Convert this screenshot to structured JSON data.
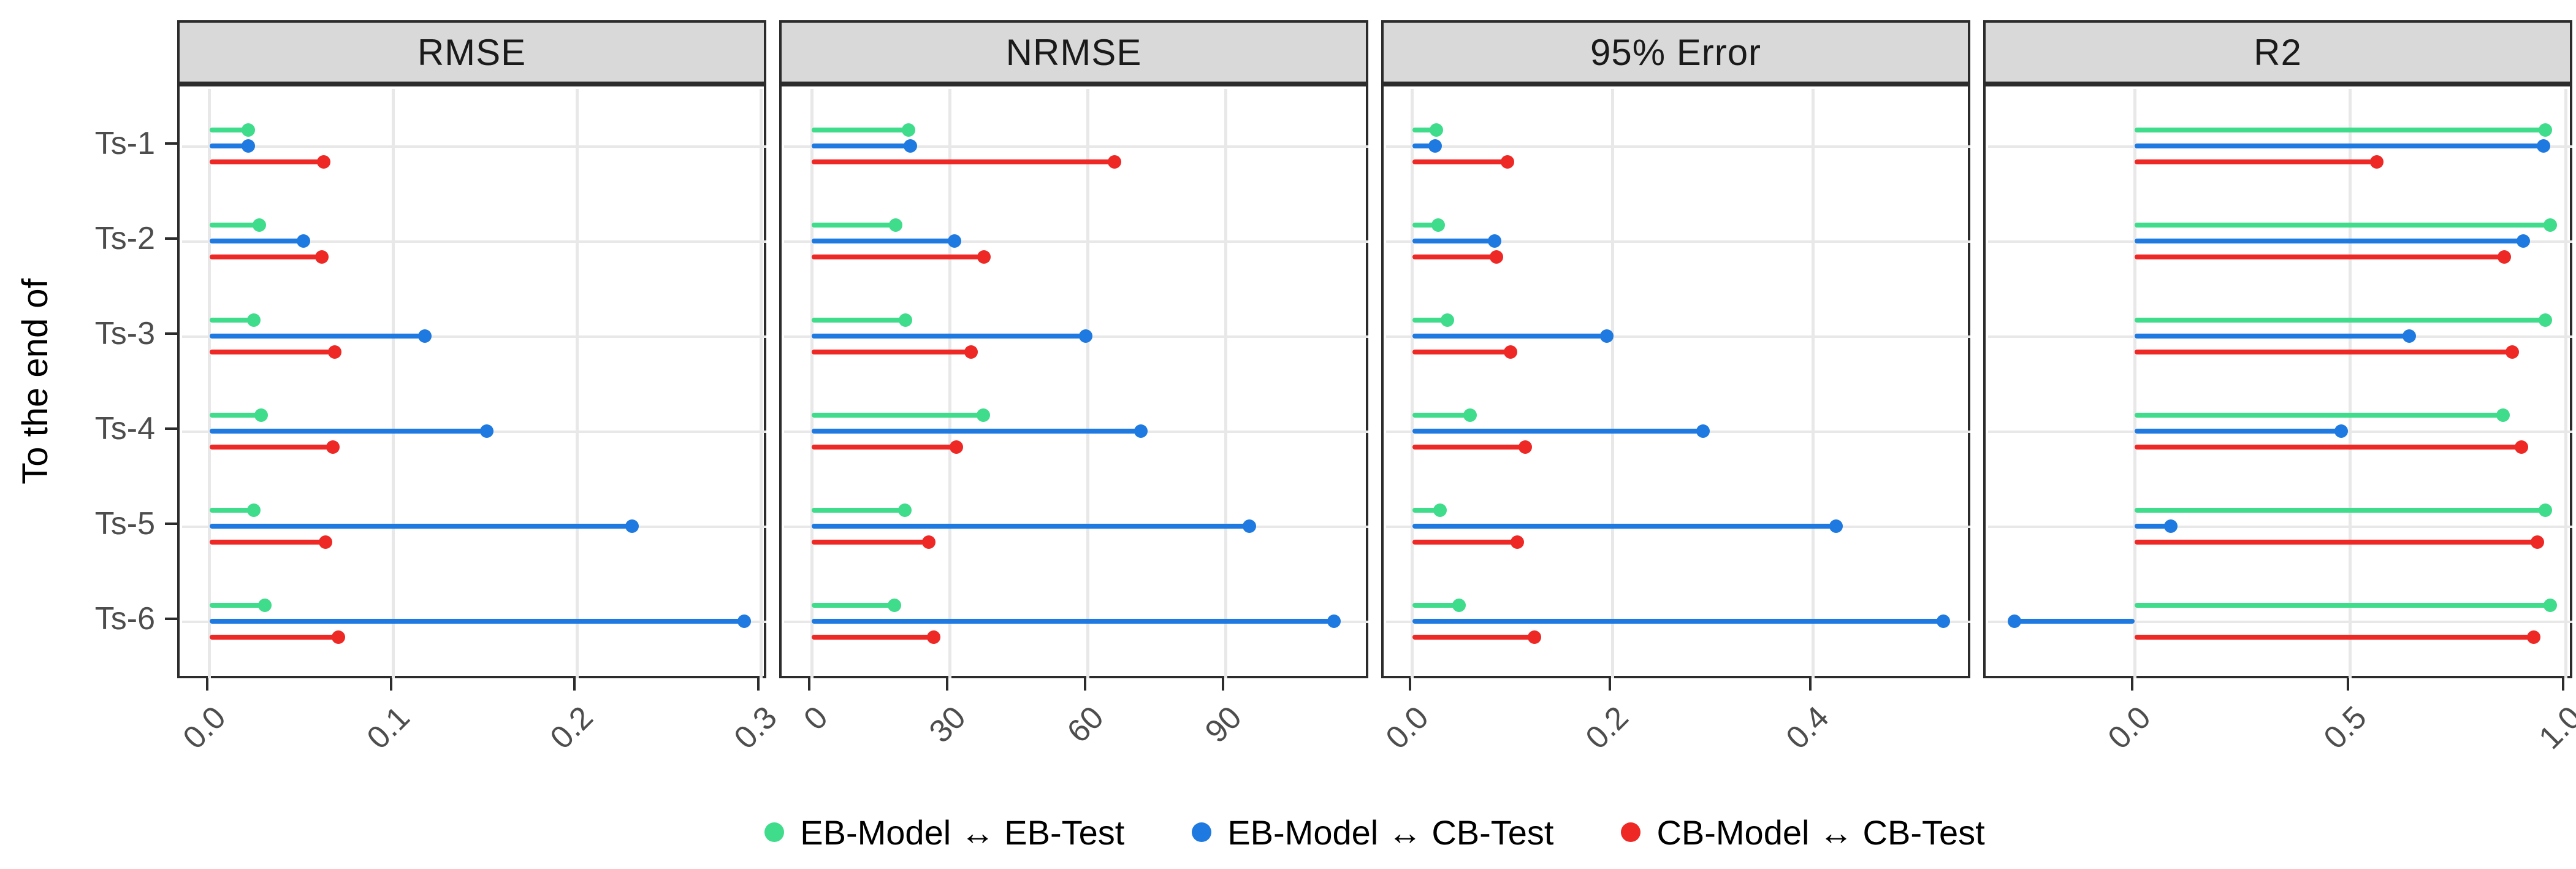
{
  "figure": {
    "y_axis_title": "To the end of",
    "categories": [
      "Ts-1",
      "Ts-2",
      "Ts-3",
      "Ts-4",
      "Ts-5",
      "Ts-6"
    ],
    "colors": {
      "eb_model_eb_test": "#3FDC8C",
      "eb_model_cb_test": "#1E7AE0",
      "cb_model_cb_test": "#EE2825",
      "grid": "#E8E8E8",
      "panel_border": "#2C2C2C",
      "strip_background": "#D9D9D9",
      "axis_text": "#4D4D4D"
    }
  },
  "legend": {
    "items": [
      {
        "label": "EB-Model ↔ EB-Test",
        "color": "#3FDC8C"
      },
      {
        "label": "EB-Model ↔ CB-Test",
        "color": "#1E7AE0"
      },
      {
        "label": "CB-Model ↔ CB-Test",
        "color": "#EE2825"
      }
    ],
    "position": "bottom"
  },
  "chart_data": [
    {
      "type": "lollipop",
      "title": "RMSE",
      "orientation": "horizontal",
      "grid": "major-only",
      "categories": [
        "Ts-1",
        "Ts-2",
        "Ts-3",
        "Ts-4",
        "Ts-5",
        "Ts-6"
      ],
      "x_domain": [
        -0.015,
        0.303
      ],
      "x_ticks": [
        {
          "value": 0.0,
          "label": "0.0"
        },
        {
          "value": 0.1,
          "label": "0.1"
        },
        {
          "value": 0.2,
          "label": "0.2"
        },
        {
          "value": 0.3,
          "label": "0.3"
        }
      ],
      "series": [
        {
          "name": "EB-Model ↔ EB-Test",
          "color": "#3FDC8C",
          "values": [
            0.021,
            0.027,
            0.024,
            0.028,
            0.024,
            0.03
          ]
        },
        {
          "name": "EB-Model ↔ CB-Test",
          "color": "#1E7AE0",
          "values": [
            0.021,
            0.051,
            0.117,
            0.151,
            0.23,
            0.291
          ]
        },
        {
          "name": "CB-Model ↔ CB-Test",
          "color": "#EE2825",
          "values": [
            0.062,
            0.061,
            0.068,
            0.067,
            0.063,
            0.07
          ]
        }
      ]
    },
    {
      "type": "lollipop",
      "title": "NRMSE",
      "orientation": "horizontal",
      "grid": "major-only",
      "categories": [
        "Ts-1",
        "Ts-2",
        "Ts-3",
        "Ts-4",
        "Ts-5",
        "Ts-6"
      ],
      "x_domain": [
        -6,
        121
      ],
      "x_ticks": [
        {
          "value": 0,
          "label": "0"
        },
        {
          "value": 30,
          "label": "30"
        },
        {
          "value": 60,
          "label": "60"
        },
        {
          "value": 90,
          "label": "90"
        }
      ],
      "series": [
        {
          "name": "EB-Model ↔ EB-Test",
          "color": "#3FDC8C",
          "values": [
            21.0,
            18.3,
            20.4,
            37.3,
            20.2,
            18.0
          ]
        },
        {
          "name": "EB-Model ↔ CB-Test",
          "color": "#1E7AE0",
          "values": [
            21.5,
            31.0,
            59.6,
            71.5,
            95.2,
            113.5
          ]
        },
        {
          "name": "CB-Model ↔ CB-Test",
          "color": "#EE2825",
          "values": [
            65.8,
            37.4,
            34.6,
            31.5,
            25.4,
            26.5
          ]
        }
      ]
    },
    {
      "type": "lollipop",
      "title": "95% Error",
      "orientation": "horizontal",
      "grid": "major-only",
      "categories": [
        "Ts-1",
        "Ts-2",
        "Ts-3",
        "Ts-4",
        "Ts-5",
        "Ts-6"
      ],
      "x_domain": [
        -0.026,
        0.557
      ],
      "x_ticks": [
        {
          "value": 0.0,
          "label": "0.0"
        },
        {
          "value": 0.2,
          "label": "0.2"
        },
        {
          "value": 0.4,
          "label": "0.4"
        }
      ],
      "series": [
        {
          "name": "EB-Model ↔ EB-Test",
          "color": "#3FDC8C",
          "values": [
            0.024,
            0.026,
            0.035,
            0.058,
            0.028,
            0.047
          ]
        },
        {
          "name": "EB-Model ↔ CB-Test",
          "color": "#1E7AE0",
          "values": [
            0.023,
            0.082,
            0.194,
            0.29,
            0.423,
            0.53
          ]
        },
        {
          "name": "CB-Model ↔ CB-Test",
          "color": "#EE2825",
          "values": [
            0.095,
            0.084,
            0.098,
            0.113,
            0.105,
            0.122
          ]
        }
      ]
    },
    {
      "type": "lollipop",
      "title": "R2",
      "orientation": "horizontal",
      "grid": "major-only",
      "categories": [
        "Ts-1",
        "Ts-2",
        "Ts-3",
        "Ts-4",
        "Ts-5",
        "Ts-6"
      ],
      "x_domain": [
        -0.34,
        1.015
      ],
      "x_ticks": [
        {
          "value": 0.0,
          "label": "0.0"
        },
        {
          "value": 0.5,
          "label": "0.5"
        },
        {
          "value": 1.0,
          "label": "1.0"
        }
      ],
      "series": [
        {
          "name": "EB-Model ↔ EB-Test",
          "color": "#3FDC8C",
          "values": [
            0.953,
            0.964,
            0.953,
            0.854,
            0.953,
            0.964
          ]
        },
        {
          "name": "EB-Model ↔ CB-Test",
          "color": "#1E7AE0",
          "values": [
            0.948,
            0.901,
            0.637,
            0.479,
            0.084,
            -0.279
          ]
        },
        {
          "name": "CB-Model ↔ CB-Test",
          "color": "#EE2825",
          "values": [
            0.562,
            0.857,
            0.875,
            0.897,
            0.934,
            0.925
          ]
        }
      ]
    }
  ]
}
